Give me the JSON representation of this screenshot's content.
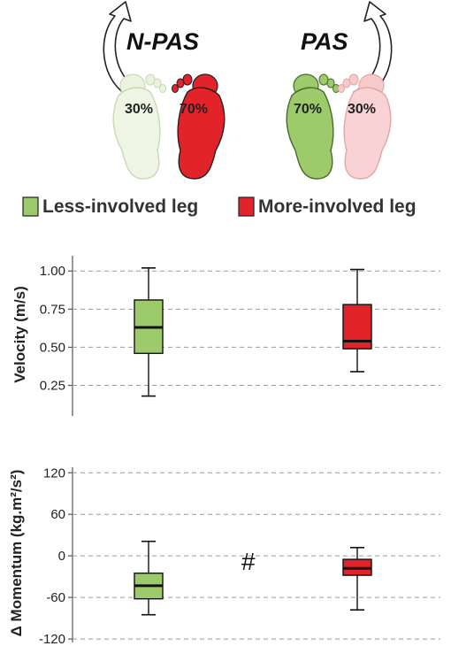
{
  "conditions": {
    "left": {
      "label": "N-PAS",
      "less_pct": "30%",
      "more_pct": "70%"
    },
    "right": {
      "label": "PAS",
      "less_pct": "70%",
      "more_pct": "30%"
    }
  },
  "legend": {
    "less": {
      "label": "Less-involved leg",
      "color": "#9dca6a"
    },
    "more": {
      "label": "More-involved leg",
      "color": "#e2232a"
    }
  },
  "chart_data": [
    {
      "type": "box",
      "ylabel": "Velocity (m/s)",
      "ylim": [
        0.05,
        1.1
      ],
      "yticks": [
        1.0,
        0.75,
        0.5,
        0.25
      ],
      "ytick_labels": [
        "1.00",
        "0.75",
        "0.50",
        "0.25"
      ],
      "grid": true,
      "series": [
        {
          "color": "#9dca6a",
          "min": 0.18,
          "q1": 0.46,
          "median": 0.63,
          "q3": 0.81,
          "max": 1.02
        },
        {
          "color": "#e2232a",
          "min": 0.34,
          "q1": 0.49,
          "median": 0.54,
          "q3": 0.78,
          "max": 1.01
        }
      ]
    },
    {
      "type": "box",
      "ylabel": "Δ Momentum (kg.m²/s²)",
      "ylim": [
        -125,
        128
      ],
      "yticks": [
        120,
        60,
        0,
        -60,
        -120
      ],
      "ytick_labels": [
        "120",
        "60",
        "0",
        "-60",
        "-120"
      ],
      "grid": true,
      "annotation": "#",
      "series": [
        {
          "color": "#9dca6a",
          "min": -85,
          "q1": -62,
          "median": -43,
          "q3": -25,
          "max": 21
        },
        {
          "color": "#e2232a",
          "min": -78,
          "q1": -28,
          "median": -18,
          "q3": -5,
          "max": 12
        }
      ]
    }
  ]
}
